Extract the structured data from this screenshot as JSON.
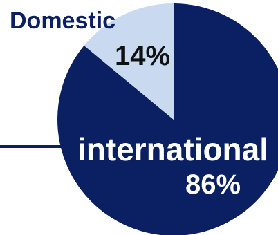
{
  "chart_data": {
    "type": "pie",
    "slices": [
      {
        "label": "international",
        "value": 86,
        "display": "86%",
        "color": "#0b2062"
      },
      {
        "label": "Domestic",
        "value": 14,
        "display": "14%",
        "color": "#c9d9f0"
      }
    ],
    "title": "",
    "legend": "none"
  },
  "colors": {
    "label_dark": "#0b2062",
    "label_light": "#ffffff",
    "value_dark": "#111111"
  }
}
